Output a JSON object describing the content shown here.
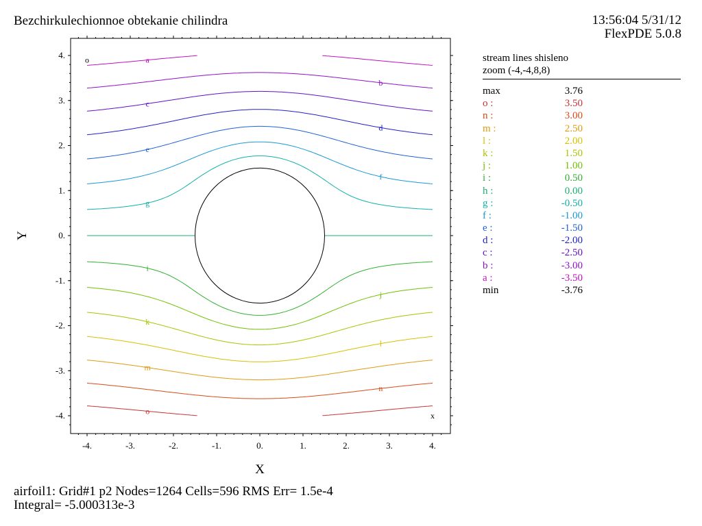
{
  "header": {
    "title": "Bezchirkulechionnoe obtekanie chilindra",
    "time": "13:56:04 5/31/12",
    "version": "FlexPDE 5.0.8"
  },
  "legend": {
    "line1": "stream lines shisleno",
    "line2": "zoom (-4,-4,8,8)",
    "max_label": "max",
    "max_value": "3.76",
    "min_label": "min",
    "min_value": "-3.76",
    "levels": [
      {
        "key": "o :",
        "value": "3.50",
        "color": "#c83232"
      },
      {
        "key": "n :",
        "value": "3.00",
        "color": "#d84a14"
      },
      {
        "key": "m :",
        "value": "2.50",
        "color": "#e09a10"
      },
      {
        "key": "l :",
        "value": "2.00",
        "color": "#d8c000"
      },
      {
        "key": "k :",
        "value": "1.50",
        "color": "#a8c400"
      },
      {
        "key": "j :",
        "value": "1.00",
        "color": "#70c000"
      },
      {
        "key": "i :",
        "value": "0.50",
        "color": "#30b030"
      },
      {
        "key": "h :",
        "value": "0.00",
        "color": "#18b070"
      },
      {
        "key": "g :",
        "value": "-0.50",
        "color": "#10b0a8"
      },
      {
        "key": "f :",
        "value": "-1.00",
        "color": "#1898d8"
      },
      {
        "key": "e :",
        "value": "-1.50",
        "color": "#2060d8"
      },
      {
        "key": "d :",
        "value": "-2.00",
        "color": "#2020c8"
      },
      {
        "key": "c :",
        "value": "-2.50",
        "color": "#6010c8"
      },
      {
        "key": "b :",
        "value": "-3.00",
        "color": "#9010c8"
      },
      {
        "key": "a :",
        "value": "-3.50",
        "color": "#c010c0"
      }
    ]
  },
  "footer": {
    "line1": "airfoil1:  Grid#1  p2  Nodes=1264 Cells=596 RMS Err= 1.5e-4",
    "line2": "Integral= -5.000313e-3"
  },
  "chart_data": {
    "type": "line",
    "xlabel": "X",
    "ylabel": "Y",
    "xlim": [
      -4.2,
      4.4
    ],
    "ylim": [
      -4.4,
      4.2
    ],
    "xticks": [
      "-4.",
      "-3.",
      "-2.",
      "-1.",
      "0.",
      "1.",
      "2.",
      "3.",
      "4."
    ],
    "yticks": [
      "4.",
      "3.",
      "2.",
      "1.",
      "0.",
      "-1.",
      "-2.",
      "-3.",
      "-4."
    ],
    "cylinder_radius": 1.5,
    "markers": {
      "max": "o",
      "min": "x"
    },
    "series": [
      {
        "label": "a",
        "value": -3.5
      },
      {
        "label": "b",
        "value": -3.0
      },
      {
        "label": "c",
        "value": -2.5
      },
      {
        "label": "d",
        "value": -2.0
      },
      {
        "label": "e",
        "value": -1.5
      },
      {
        "label": "f",
        "value": -1.0
      },
      {
        "label": "g",
        "value": -0.5
      },
      {
        "label": "h",
        "value": 0.0
      },
      {
        "label": "i",
        "value": 0.5
      },
      {
        "label": "j",
        "value": 1.0
      },
      {
        "label": "k",
        "value": 1.5
      },
      {
        "label": "l",
        "value": 2.0
      },
      {
        "label": "m",
        "value": 2.5
      },
      {
        "label": "n",
        "value": 3.0
      },
      {
        "label": "o",
        "value": 3.5
      }
    ]
  }
}
